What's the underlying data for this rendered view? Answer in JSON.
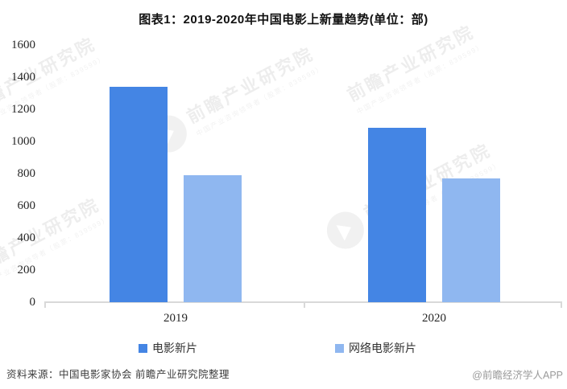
{
  "title": "图表1：2019-2020年中国电影上新量趋势(单位：部)",
  "chart_data": {
    "type": "bar",
    "title": "图表1：2019-2020年中国电影上新量趋势(单位：部)",
    "unit": "部",
    "categories": [
      "2019",
      "2020"
    ],
    "series": [
      {
        "name": "电影新片",
        "color": "#4485E4",
        "values": [
          1342,
          1086
        ]
      },
      {
        "name": "网络电影新片",
        "color": "#8FB7F0",
        "values": [
          789,
          769
        ]
      }
    ],
    "ylim": [
      0,
      1600
    ],
    "yticks": [
      0,
      200,
      400,
      600,
      800,
      1000,
      1200,
      1400,
      1600
    ],
    "grid": false,
    "legend_position": "bottom",
    "axis_color": "#D9D9D9"
  },
  "watermark": {
    "main": "前瞻产业研究院",
    "sub": "中国产业咨询领导者（股票：839599）"
  },
  "footer": {
    "source": "资料来源：中国电影家协会 前瞻产业研究院整理",
    "credit": "@前瞻经济学人APP"
  }
}
